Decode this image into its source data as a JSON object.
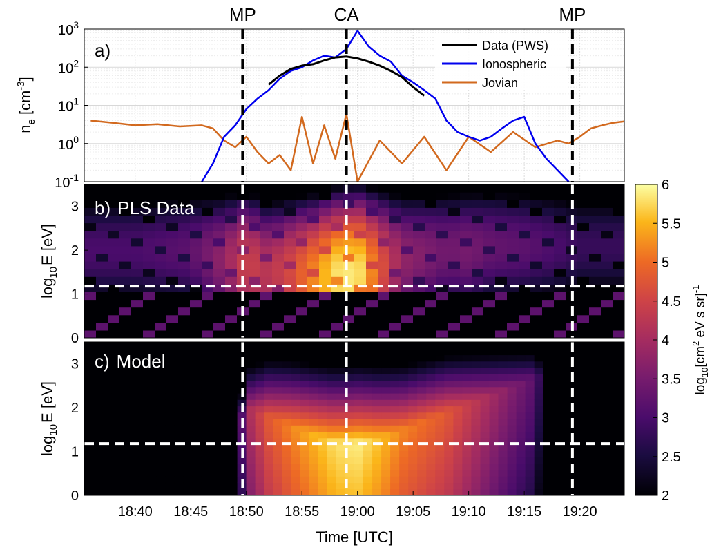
{
  "chart_data": [
    {
      "type": "line",
      "panel_label": "a)",
      "ylabel_base": "n",
      "ylabel_sub": "e",
      "ylabel_unit": "[cm",
      "ylabel_sup": "-3",
      "ylabel_close": "]",
      "y_scale": "log",
      "ylim": [
        0.1,
        1000
      ],
      "y_ticks": [
        {
          "value": 1000,
          "base": "10",
          "exp": "3"
        },
        {
          "value": 100,
          "base": "10",
          "exp": "2"
        },
        {
          "value": 10,
          "base": "10",
          "exp": "1"
        },
        {
          "value": 1,
          "base": "10",
          "exp": "0"
        },
        {
          "value": 0.1,
          "base": "10",
          "exp": "-1"
        }
      ],
      "grid": true,
      "legend_position": "top-right",
      "series": [
        {
          "name": "Data (PWS)",
          "color": "#000000",
          "x": [
            "18:52",
            "18:53",
            "18:54",
            "18:55",
            "18:56",
            "18:57",
            "18:58",
            "18:59",
            "19:00",
            "19:01",
            "19:02",
            "19:03",
            "19:04",
            "19:05",
            "19:06"
          ],
          "y": [
            35,
            60,
            90,
            110,
            120,
            150,
            180,
            190,
            170,
            140,
            110,
            80,
            55,
            30,
            18
          ]
        },
        {
          "name": "Ionospheric",
          "color": "#0000ee",
          "x": [
            "18:46",
            "18:47",
            "18:48",
            "18:49",
            "18:50",
            "18:51",
            "18:52",
            "18:53",
            "18:54",
            "18:55",
            "18:56",
            "18:57",
            "18:58",
            "18:59",
            "19:00",
            "19:01",
            "19:02",
            "19:03",
            "19:04",
            "19:05",
            "19:06",
            "19:07",
            "19:08",
            "19:09",
            "19:10",
            "19:11",
            "19:12",
            "19:13",
            "19:14",
            "19:15",
            "19:16",
            "19:17",
            "19:18",
            "19:19"
          ],
          "y": [
            0.1,
            0.3,
            1.5,
            3,
            8,
            15,
            25,
            50,
            80,
            100,
            150,
            200,
            180,
            300,
            900,
            350,
            200,
            140,
            60,
            40,
            25,
            15,
            4,
            2,
            1.5,
            1.2,
            1.5,
            2.5,
            4,
            5,
            1,
            0.4,
            0.2,
            0.1
          ]
        },
        {
          "name": "Jovian",
          "color": "#d2691e",
          "x": [
            "18:36",
            "18:38",
            "18:40",
            "18:42",
            "18:44",
            "18:46",
            "18:47",
            "18:48",
            "18:49",
            "18:50",
            "18:51",
            "18:52",
            "18:53",
            "18:54",
            "18:55",
            "18:56",
            "18:57",
            "18:58",
            "18:59",
            "19:00",
            "19:02",
            "19:04",
            "19:06",
            "19:08",
            "19:10",
            "19:12",
            "19:14",
            "19:16",
            "19:18",
            "19:19",
            "19:20",
            "19:21",
            "19:22",
            "19:23",
            "19:24"
          ],
          "y": [
            4,
            3.5,
            3,
            3.2,
            2.8,
            3,
            2.5,
            1.2,
            0.8,
            1.5,
            0.6,
            0.3,
            0.5,
            0.2,
            5,
            0.3,
            3,
            0.4,
            6,
            0.1,
            1.2,
            0.3,
            1.5,
            0.2,
            1.5,
            0.6,
            2,
            0.8,
            1.2,
            1,
            1.5,
            2.5,
            3,
            3.5,
            3.8
          ]
        }
      ],
      "markers": [
        {
          "label": "MP",
          "time": "18:49:40"
        },
        {
          "label": "CA",
          "time": "18:59:00"
        },
        {
          "label": "MP",
          "time": "19:19:20"
        }
      ]
    },
    {
      "type": "heatmap",
      "panel_label": "b)",
      "title": "PLS Data",
      "ylabel_base": "log",
      "ylabel_sub": "10",
      "ylabel_rest": "E [eV]",
      "ylim": [
        0,
        3.5
      ],
      "y_ticks": [
        "0",
        "1",
        "2",
        "3"
      ],
      "threshold_line": 1.18,
      "profile": {
        "times": [
          "18:35",
          "18:40",
          "18:45",
          "18:48",
          "18:50",
          "18:52",
          "18:54",
          "18:56",
          "18:58",
          "19:00",
          "19:02",
          "19:04",
          "19:06",
          "19:08",
          "19:10",
          "19:12",
          "19:15",
          "19:18",
          "19:20",
          "19:24"
        ],
        "level": [
          3.0,
          3.0,
          3.2,
          3.8,
          4.5,
          4.2,
          4.6,
          5.2,
          5.8,
          5.9,
          4.8,
          3.8,
          3.6,
          3.4,
          3.5,
          3.3,
          3.2,
          3.0,
          2.8,
          2.8
        ],
        "peak_logE": [
          2.0,
          2.0,
          2.0,
          1.8,
          1.7,
          1.5,
          1.5,
          1.4,
          1.4,
          1.45,
          1.6,
          1.8,
          1.9,
          2.0,
          2.0,
          2.1,
          2.1,
          2.1,
          2.1,
          2.1
        ]
      }
    },
    {
      "type": "heatmap",
      "panel_label": "c)",
      "title": "Model",
      "ylabel_base": "log",
      "ylabel_sub": "10",
      "ylabel_rest": "E [eV]",
      "ylim": [
        0,
        3.5
      ],
      "y_ticks": [
        "0",
        "1",
        "2",
        "3"
      ],
      "threshold_line": 1.18,
      "profile": {
        "times": [
          "18:35",
          "18:49",
          "18:50",
          "18:52",
          "18:54",
          "18:56",
          "18:58",
          "19:00",
          "19:02",
          "19:04",
          "19:06",
          "19:08",
          "19:10",
          "19:12",
          "19:14",
          "19:16",
          "19:17",
          "19:24"
        ],
        "level": [
          2.0,
          2.0,
          4.0,
          4.8,
          5.2,
          5.5,
          5.8,
          5.9,
          5.6,
          5.2,
          5.0,
          4.8,
          4.4,
          4.0,
          3.6,
          3.2,
          2.0,
          2.0
        ],
        "v_center_logE": [
          1.5,
          1.5,
          2.0,
          1.8,
          1.6,
          1.4,
          1.2,
          1.2,
          1.3,
          1.5,
          1.7,
          1.9,
          2.1,
          2.3,
          2.5,
          2.7,
          2.8,
          2.8
        ]
      }
    }
  ],
  "x_axis": {
    "xlabel": "Time [UTC]",
    "tick_labels": [
      "18:40",
      "18:45",
      "18:50",
      "18:55",
      "19:00",
      "19:05",
      "19:10",
      "19:15",
      "19:20"
    ]
  },
  "colorbar": {
    "colormap": "inferno",
    "range": [
      2,
      6
    ],
    "tick_labels": [
      "2",
      "2.5",
      "3",
      "3.5",
      "4",
      "4.5",
      "5",
      "5.5",
      "6"
    ],
    "label_log": "log",
    "label_sub": "10",
    "label_a": "[cm",
    "label_sup2": "2",
    "label_b": " eV s sr]",
    "label_sup": "-1"
  }
}
